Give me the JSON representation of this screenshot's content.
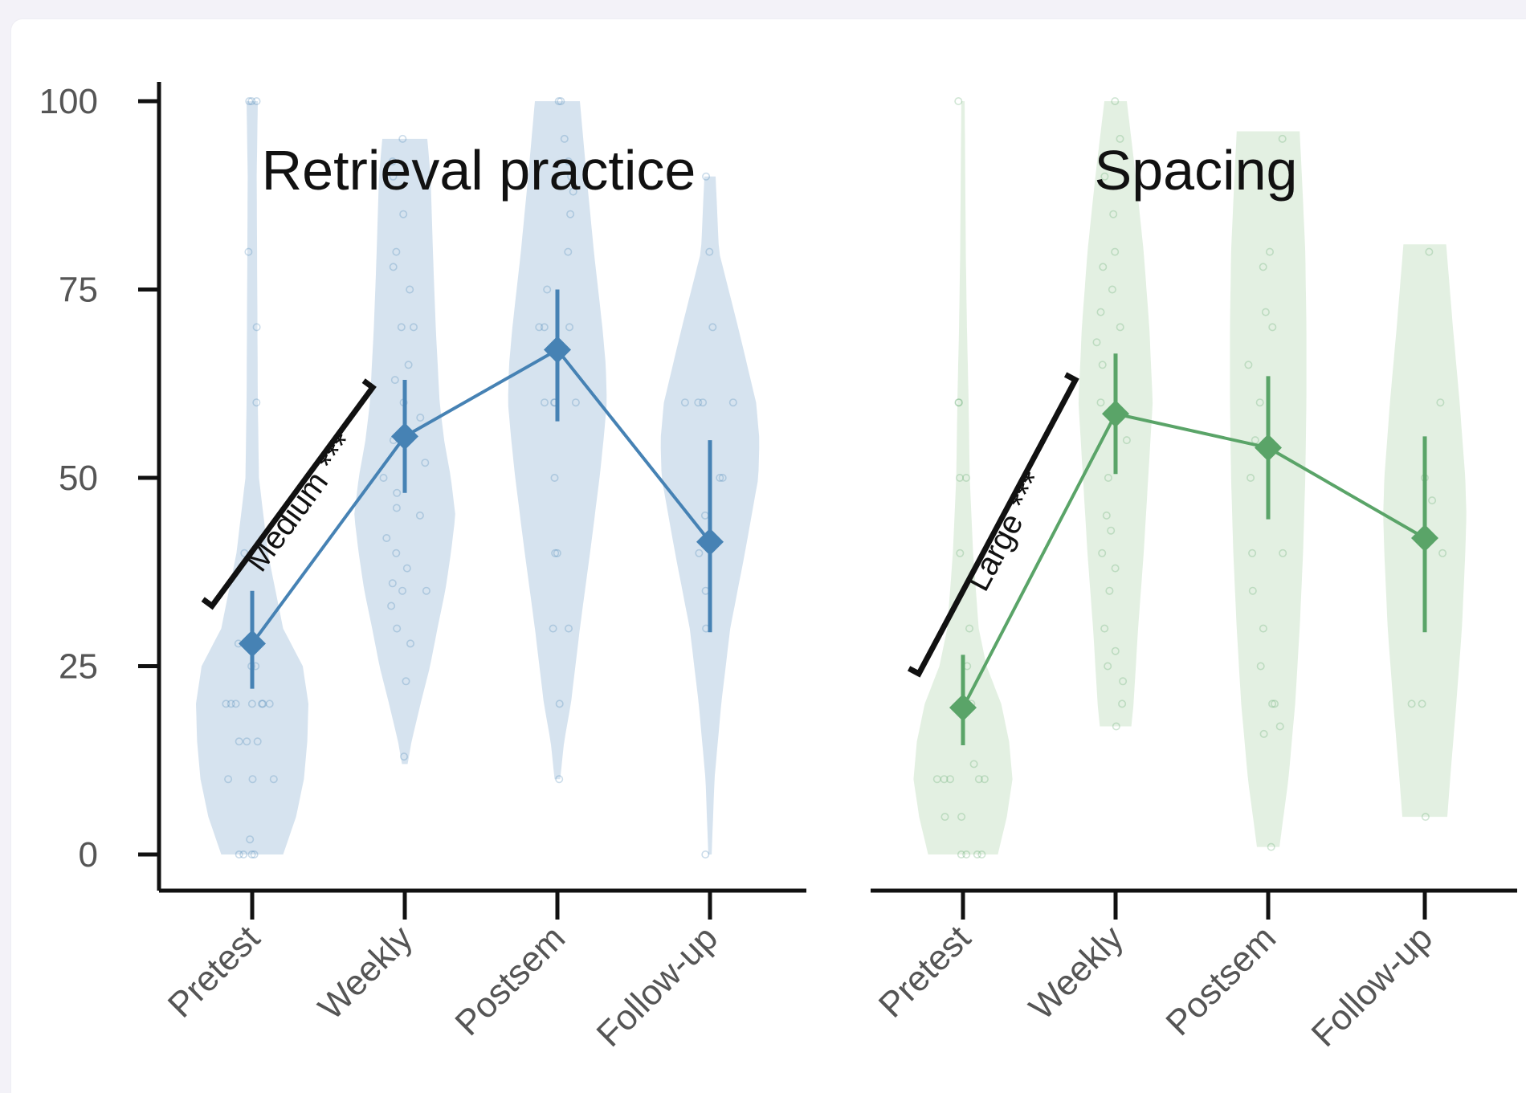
{
  "chart_data": {
    "type": "line",
    "y_range": [
      0,
      100
    ],
    "y_ticks": [
      0,
      25,
      50,
      75,
      100
    ],
    "grid": false,
    "legend": "none",
    "categories": [
      "Pretest",
      "Weekly",
      "Postsem",
      "Follow-up"
    ],
    "panels": [
      {
        "title": "Retrieval practice",
        "color": "#4682b4",
        "fill": "#d6e3ef",
        "series": [
          {
            "values": [
              28,
              55.5,
              67,
              41.5
            ],
            "ci_low": [
              22,
              48,
              57.5,
              29.5
            ],
            "ci_high": [
              35,
              63,
              75,
              55
            ]
          }
        ],
        "annotation": {
          "label": "Medium ***",
          "from": "Pretest",
          "to": "Weekly"
        },
        "violins": [
          {
            "range": [
              0,
              100
            ],
            "peak": 19,
            "profile": [
              [
                0,
                0.55
              ],
              [
                5,
                0.78
              ],
              [
                10,
                0.92
              ],
              [
                15,
                0.98
              ],
              [
                20,
                1.0
              ],
              [
                25,
                0.9
              ],
              [
                30,
                0.55
              ],
              [
                40,
                0.28
              ],
              [
                50,
                0.12
              ],
              [
                60,
                0.1
              ],
              [
                75,
                0.09
              ],
              [
                90,
                0.08
              ],
              [
                100,
                0.1
              ]
            ]
          },
          {
            "range": [
              12,
              95
            ],
            "peak": 45,
            "profile": [
              [
                12,
                0.05
              ],
              [
                15,
                0.12
              ],
              [
                20,
                0.28
              ],
              [
                25,
                0.45
              ],
              [
                30,
                0.58
              ],
              [
                35,
                0.72
              ],
              [
                40,
                0.82
              ],
              [
                45,
                0.9
              ],
              [
                50,
                0.82
              ],
              [
                55,
                0.7
              ],
              [
                60,
                0.62
              ],
              [
                70,
                0.55
              ],
              [
                80,
                0.5
              ],
              [
                90,
                0.46
              ],
              [
                95,
                0.4
              ]
            ]
          },
          {
            "range": [
              10,
              100
            ],
            "peak": 63,
            "profile": [
              [
                10,
                0.05
              ],
              [
                15,
                0.12
              ],
              [
                20,
                0.24
              ],
              [
                30,
                0.4
              ],
              [
                40,
                0.58
              ],
              [
                50,
                0.75
              ],
              [
                55,
                0.82
              ],
              [
                60,
                0.88
              ],
              [
                65,
                0.86
              ],
              [
                70,
                0.8
              ],
              [
                80,
                0.65
              ],
              [
                90,
                0.52
              ],
              [
                100,
                0.4
              ]
            ]
          },
          {
            "range": [
              0,
              90
            ],
            "peak": 55,
            "profile": [
              [
                0,
                0.03
              ],
              [
                10,
                0.08
              ],
              [
                20,
                0.2
              ],
              [
                30,
                0.36
              ],
              [
                40,
                0.62
              ],
              [
                50,
                0.86
              ],
              [
                55,
                0.88
              ],
              [
                60,
                0.82
              ],
              [
                70,
                0.5
              ],
              [
                80,
                0.16
              ],
              [
                90,
                0.1
              ]
            ]
          }
        ],
        "points": [
          [
            0,
            0,
            0,
            0,
            2,
            10,
            10,
            10,
            15,
            15,
            15,
            20,
            20,
            20,
            20,
            20,
            20,
            20,
            25,
            25,
            28,
            40,
            60,
            70,
            80,
            100,
            100,
            100
          ],
          [
            13,
            23,
            28,
            30,
            33,
            35,
            35,
            36,
            38,
            40,
            42,
            45,
            46,
            48,
            50,
            52,
            55,
            58,
            60,
            63,
            65,
            70,
            70,
            75,
            78,
            80,
            85,
            90,
            92,
            95
          ],
          [
            10,
            20,
            30,
            30,
            40,
            40,
            50,
            60,
            60,
            60,
            60,
            70,
            70,
            70,
            75,
            80,
            85,
            88,
            90,
            92,
            95,
            100,
            100
          ],
          [
            0,
            30,
            35,
            40,
            45,
            50,
            50,
            60,
            60,
            60,
            60,
            70,
            80,
            90
          ]
        ]
      },
      {
        "title": "Spacing",
        "color": "#5aa468",
        "fill": "#e3f0e2",
        "series": [
          {
            "values": [
              19.5,
              58.5,
              54,
              42
            ],
            "ci_low": [
              14.5,
              50.5,
              44.5,
              29.5
            ],
            "ci_high": [
              26.5,
              66.5,
              63.5,
              55.5
            ]
          }
        ],
        "annotation": {
          "label": "Large ***",
          "from": "Pretest",
          "to": "Weekly"
        },
        "violins": [
          {
            "range": [
              0,
              100
            ],
            "peak": 18,
            "profile": [
              [
                0,
                0.62
              ],
              [
                5,
                0.78
              ],
              [
                10,
                0.88
              ],
              [
                15,
                0.82
              ],
              [
                20,
                0.68
              ],
              [
                25,
                0.42
              ],
              [
                30,
                0.28
              ],
              [
                40,
                0.18
              ],
              [
                50,
                0.12
              ],
              [
                60,
                0.1
              ],
              [
                70,
                0.07
              ],
              [
                80,
                0.05
              ],
              [
                90,
                0.04
              ],
              [
                100,
                0.03
              ]
            ]
          },
          {
            "range": [
              17,
              100
            ],
            "peak": 50,
            "profile": [
              [
                17,
                0.28
              ],
              [
                20,
                0.32
              ],
              [
                30,
                0.4
              ],
              [
                40,
                0.5
              ],
              [
                50,
                0.58
              ],
              [
                55,
                0.62
              ],
              [
                60,
                0.66
              ],
              [
                70,
                0.6
              ],
              [
                80,
                0.5
              ],
              [
                90,
                0.36
              ],
              [
                100,
                0.2
              ]
            ]
          },
          {
            "range": [
              1,
              96
            ],
            "peak": 60,
            "profile": [
              [
                1,
                0.2
              ],
              [
                10,
                0.36
              ],
              [
                20,
                0.48
              ],
              [
                30,
                0.56
              ],
              [
                40,
                0.62
              ],
              [
                50,
                0.66
              ],
              [
                60,
                0.68
              ],
              [
                70,
                0.68
              ],
              [
                80,
                0.66
              ],
              [
                90,
                0.6
              ],
              [
                96,
                0.56
              ]
            ]
          },
          {
            "range": [
              5,
              81
            ],
            "peak": 45,
            "profile": [
              [
                5,
                0.4
              ],
              [
                10,
                0.45
              ],
              [
                20,
                0.56
              ],
              [
                30,
                0.66
              ],
              [
                40,
                0.72
              ],
              [
                45,
                0.74
              ],
              [
                50,
                0.72
              ],
              [
                60,
                0.62
              ],
              [
                70,
                0.5
              ],
              [
                81,
                0.38
              ]
            ]
          }
        ],
        "points": [
          [
            0,
            0,
            0,
            0,
            5,
            5,
            10,
            10,
            10,
            10,
            10,
            12,
            20,
            25,
            30,
            40,
            50,
            50,
            60,
            60,
            100
          ],
          [
            17,
            20,
            23,
            25,
            27,
            30,
            35,
            38,
            40,
            43,
            45,
            50,
            55,
            60,
            65,
            68,
            70,
            72,
            75,
            78,
            80,
            85,
            90,
            95,
            100
          ],
          [
            1,
            16,
            17,
            20,
            20,
            25,
            30,
            35,
            40,
            40,
            50,
            55,
            60,
            65,
            70,
            72,
            78,
            80,
            95
          ],
          [
            5,
            20,
            20,
            40,
            47,
            50,
            60,
            80
          ]
        ]
      }
    ]
  }
}
